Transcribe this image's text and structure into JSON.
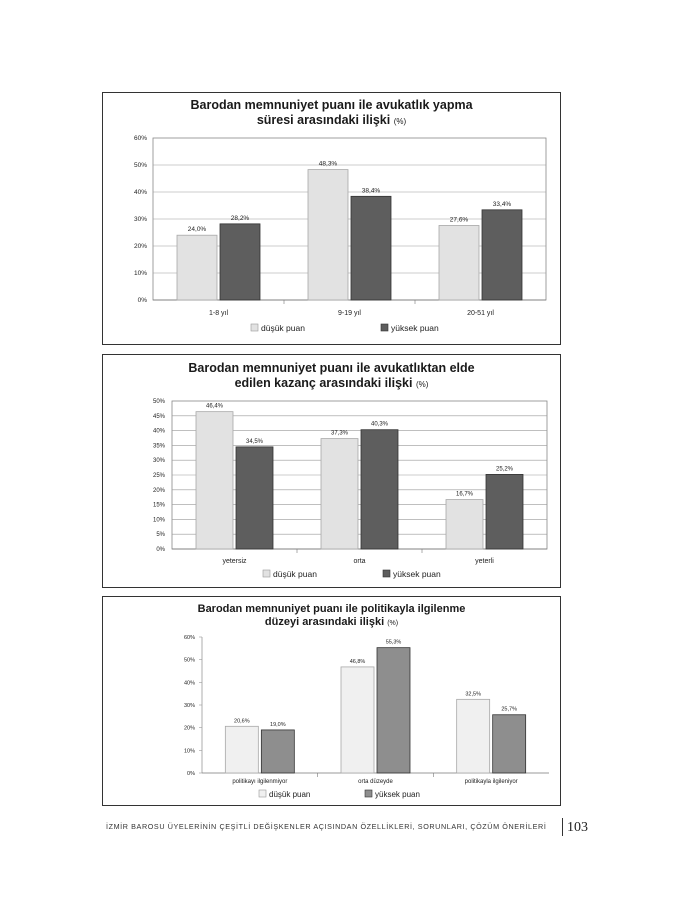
{
  "chart_data": [
    {
      "type": "bar",
      "title_main": "Barodan memnuniyet puanı ile avukatlık yapma süresi arasındaki ilişki",
      "title_line1": "Barodan memnuniyet puanı ile avukatlık yapma",
      "title_line2": "süresi arasındaki ilişki",
      "title_suffix": "(%)",
      "categories": [
        "1-8 yıl",
        "9-19 yıl",
        "20-51 yıl"
      ],
      "series": [
        {
          "name": "düşük puan",
          "values": [
            24.0,
            48.3,
            27.6
          ],
          "labels": [
            "24,0%",
            "48,3%",
            "27,6%"
          ]
        },
        {
          "name": "yüksek puan",
          "values": [
            28.2,
            38.4,
            33.4
          ],
          "labels": [
            "28,2%",
            "38,4%",
            "33,4%"
          ]
        }
      ],
      "yticks": [
        "0%",
        "10%",
        "20%",
        "30%",
        "40%",
        "50%",
        "60%"
      ],
      "ylim": [
        0,
        60
      ],
      "legend": "bottom",
      "grid": true
    },
    {
      "type": "bar",
      "title_main": "Barodan memnuniyet puanı ile avukatlıktan elde edilen kazanç arasındaki ilişki",
      "title_line1": "Barodan memnuniyet puanı ile avukatlıktan elde",
      "title_line2": "edilen kazanç arasındaki ilişki",
      "title_suffix": "(%)",
      "categories": [
        "yetersiz",
        "orta",
        "yeterli"
      ],
      "series": [
        {
          "name": "düşük puan",
          "values": [
            46.4,
            37.3,
            16.7
          ],
          "labels": [
            "46,4%",
            "37,3%",
            "16,7%"
          ]
        },
        {
          "name": "yüksek puan",
          "values": [
            34.5,
            40.3,
            25.2
          ],
          "labels": [
            "34,5%",
            "40,3%",
            "25,2%"
          ]
        }
      ],
      "yticks": [
        "0%",
        "5%",
        "10%",
        "15%",
        "20%",
        "25%",
        "30%",
        "35%",
        "40%",
        "45%",
        "50%"
      ],
      "ylim": [
        0,
        50
      ],
      "legend": "bottom",
      "grid": true
    },
    {
      "type": "bar",
      "title_main": "Barodan memnuniyet puanı ile politikayla ilgilenme düzeyi arasındaki ilişki",
      "title_line1": "Barodan memnuniyet puanı ile politikayla ilgilenme",
      "title_line2": "düzeyi arasındaki ilişki",
      "title_suffix": "(%)",
      "categories": [
        "politikayı ilgilenmiyor",
        "orta düzeyde",
        "politikayla ilgileniyor"
      ],
      "series": [
        {
          "name": "düşük puan",
          "values": [
            20.6,
            46.8,
            32.5
          ],
          "labels": [
            "20,6%",
            "46,8%",
            "32,5%"
          ]
        },
        {
          "name": "yüksek puan",
          "values": [
            19.0,
            55.3,
            25.7
          ],
          "labels": [
            "19,0%",
            "55,3%",
            "25,7%"
          ]
        }
      ],
      "yticks": [
        "0%",
        "10%",
        "20%",
        "30%",
        "40%",
        "50%",
        "60%"
      ],
      "ylim": [
        0,
        60
      ],
      "legend": "bottom",
      "grid": false
    }
  ],
  "footer": {
    "text": "İZMİR BAROSU ÜYELERİNİN ÇEŞİTLİ DEĞİŞKENLER AÇISINDAN ÖZELLİKLERİ, SORUNLARI, ÇÖZÜM ÖNERİLERİ",
    "page_number": "103"
  },
  "colors": {
    "low": "#e2e2e2",
    "high": "#5e5e5e",
    "low3": "#f0f0f0",
    "high3": "#8e8e8e"
  }
}
